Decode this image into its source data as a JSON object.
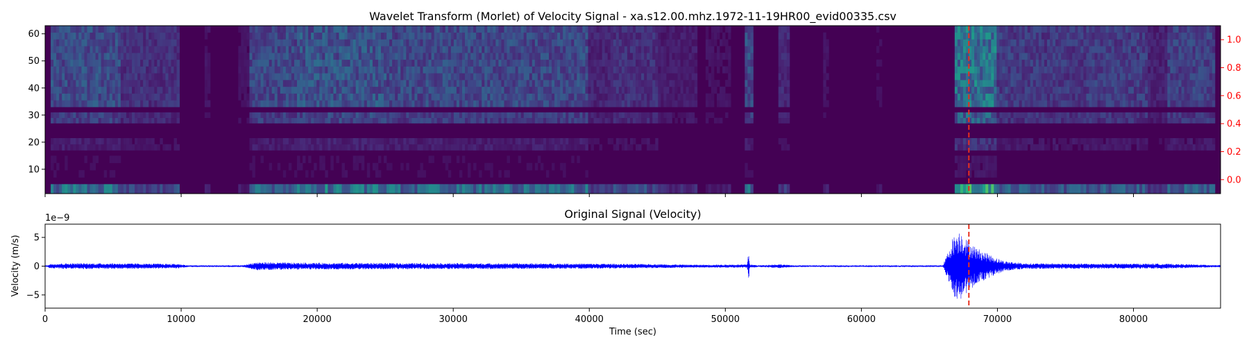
{
  "chart_data": [
    {
      "type": "heatmap",
      "title": "Wavelet Transform (Morlet) of Velocity Signal - xa.s12.00.mhz.1972-11-19HR00_evid00335.csv",
      "colormap": "viridis",
      "xlim": [
        0,
        86400
      ],
      "ylim": [
        1,
        63
      ],
      "y_ticks": [
        10,
        20,
        30,
        40,
        50,
        60
      ],
      "y_tick_labels": [
        "10",
        "20",
        "30",
        "40",
        "50",
        "60"
      ],
      "right_axis": {
        "ylim": [
          -0.1,
          1.1
        ],
        "ticks": [
          0.0,
          0.2,
          0.4,
          0.6,
          0.8,
          1.0
        ],
        "tick_labels": [
          "0.0",
          "0.2",
          "0.4",
          "0.6",
          "0.8",
          "1.0"
        ],
        "color": "#ff0000"
      },
      "event_marker_x": 67900,
      "marker_color": "#e8301e",
      "energy_bands": [
        {
          "y": [
            33,
            63
          ],
          "level": 0.55
        },
        {
          "y": [
            27,
            31
          ],
          "level": 0.45
        },
        {
          "y": [
            17,
            21.5
          ],
          "level": 0.2
        },
        {
          "y": [
            7,
            15
          ],
          "level": 0.08
        },
        {
          "y": [
            1,
            4.5
          ],
          "level": 0.85
        }
      ],
      "activity_segments": [
        {
          "x": [
            500,
            5500
          ],
          "level": 0.9
        },
        {
          "x": [
            5500,
            9800
          ],
          "level": 0.55
        },
        {
          "x": [
            11800,
            12100
          ],
          "level": 0.2
        },
        {
          "x": [
            14200,
            15000
          ],
          "level": 0.2
        },
        {
          "x": [
            15000,
            18500
          ],
          "level": 0.85
        },
        {
          "x": [
            18500,
            25000
          ],
          "level": 1.0
        },
        {
          "x": [
            25000,
            40000
          ],
          "level": 0.85
        },
        {
          "x": [
            40000,
            41800
          ],
          "level": 0.4
        },
        {
          "x": [
            41800,
            45000
          ],
          "level": 0.55
        },
        {
          "x": [
            45000,
            48000
          ],
          "level": 0.3
        },
        {
          "x": [
            48500,
            50500
          ],
          "level": 0.2
        },
        {
          "x": [
            51500,
            52000
          ],
          "level": 0.9
        },
        {
          "x": [
            53800,
            54700
          ],
          "level": 0.45
        },
        {
          "x": [
            57200,
            57700
          ],
          "level": 0.2
        },
        {
          "x": [
            61200,
            61500
          ],
          "level": 0.15
        },
        {
          "x": [
            66800,
            70000
          ],
          "level": 1.5
        },
        {
          "x": [
            70000,
            73000
          ],
          "level": 0.7
        },
        {
          "x": [
            73000,
            76500
          ],
          "level": 0.65
        },
        {
          "x": [
            76500,
            81000
          ],
          "level": 0.7
        },
        {
          "x": [
            81000,
            82500
          ],
          "level": 0.35
        },
        {
          "x": [
            82500,
            86000
          ],
          "level": 0.75
        }
      ]
    },
    {
      "type": "line",
      "title": "Original Signal (Velocity)",
      "xlabel": "Time (sec)",
      "ylabel": "Velocity (m/s)",
      "offset_text": "1e−9",
      "line_color": "#0000ff",
      "xlim": [
        0,
        86400
      ],
      "ylim": [
        -7.3,
        7.3
      ],
      "x_ticks": [
        0,
        10000,
        20000,
        30000,
        40000,
        50000,
        60000,
        70000,
        80000
      ],
      "x_tick_labels": [
        "0",
        "10000",
        "20000",
        "30000",
        "40000",
        "50000",
        "60000",
        "70000",
        "80000"
      ],
      "y_ticks": [
        -5,
        0,
        5
      ],
      "y_tick_labels": [
        "−5",
        "0",
        "5"
      ],
      "event_marker_x": 67900,
      "marker_color": "#e8301e",
      "amplitude_envelope": {
        "x": [
          0,
          500,
          1500,
          5500,
          9800,
          10500,
          14500,
          15500,
          18500,
          25000,
          40000,
          45000,
          48000,
          51600,
          51700,
          51800,
          52500,
          54000,
          55000,
          61000,
          61300,
          66000,
          66800,
          67300,
          67800,
          68500,
          69500,
          70500,
          72000,
          76000,
          82000,
          86000
        ],
        "amplitude": [
          0.1,
          0.45,
          0.5,
          0.5,
          0.4,
          0.15,
          0.15,
          0.7,
          0.6,
          0.55,
          0.45,
          0.35,
          0.25,
          0.3,
          2.8,
          0.3,
          0.15,
          0.35,
          0.15,
          0.15,
          0.15,
          0.15,
          5.5,
          6.4,
          4.5,
          3.2,
          1.9,
          0.9,
          0.5,
          0.45,
          0.45,
          0.2
        ]
      }
    }
  ]
}
